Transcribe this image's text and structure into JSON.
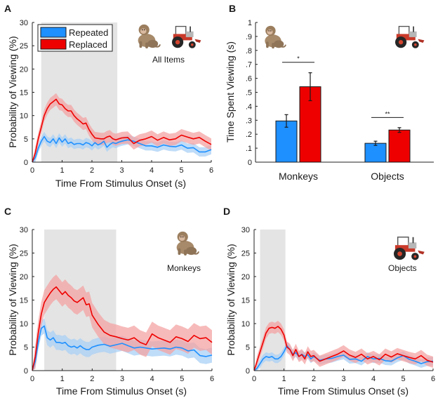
{
  "colors": {
    "repeated": "#1e90ff",
    "replaced": "#ee0000",
    "repeated_band": "#a9d0f5",
    "replaced_band": "#f4a3a3",
    "shade": "#e4e4e4"
  },
  "icons": {
    "monkey": "monkey-photo-icon",
    "object": "tractor-photo-icon"
  },
  "legend": {
    "repeated": "Repeated",
    "replaced": "Replaced"
  },
  "chart_data": [
    {
      "id": "A",
      "panel_label": "A",
      "type": "line",
      "annotation": "All Items",
      "xlabel": "Time From Stimulus Onset (s)",
      "ylabel": "Probability of Viewing (%)",
      "xlim": [
        0,
        6
      ],
      "ylim": [
        0,
        30
      ],
      "xticks": [
        "0",
        "1",
        "2",
        "3",
        "4",
        "5",
        "6"
      ],
      "yticks": [
        "0",
        "5",
        "10",
        "15",
        "20",
        "25",
        "30"
      ],
      "shaded_interval": [
        0.3,
        2.85
      ],
      "series": [
        {
          "name": "Repeated",
          "err": 1.0,
          "x": [
            0,
            0.1,
            0.2,
            0.3,
            0.4,
            0.5,
            0.6,
            0.7,
            0.8,
            0.9,
            1.0,
            1.1,
            1.2,
            1.3,
            1.4,
            1.5,
            1.6,
            1.7,
            1.8,
            1.9,
            2.0,
            2.1,
            2.2,
            2.3,
            2.4,
            2.5,
            2.6,
            2.7,
            2.8,
            2.9,
            3.0,
            3.2,
            3.4,
            3.6,
            3.8,
            4.0,
            4.2,
            4.4,
            4.6,
            4.8,
            5.0,
            5.2,
            5.4,
            5.6,
            5.8,
            6.0
          ],
          "y": [
            0,
            1,
            3,
            4.5,
            5.5,
            4.5,
            4.2,
            5.0,
            4.0,
            5.2,
            4.3,
            5.0,
            4.0,
            4.3,
            3.8,
            4.0,
            4.0,
            3.7,
            4.2,
            4.0,
            3.5,
            4.2,
            3.7,
            4.0,
            4.5,
            3.2,
            3.8,
            4.2,
            4.0,
            4.3,
            4.5,
            4.8,
            4.5,
            4.0,
            3.5,
            3.5,
            3.2,
            3.7,
            3.4,
            3.3,
            3.7,
            3.0,
            3.1,
            2.2,
            2.2,
            2.7
          ]
        },
        {
          "name": "Replaced",
          "err": 1.3,
          "x": [
            0,
            0.1,
            0.2,
            0.3,
            0.4,
            0.5,
            0.6,
            0.7,
            0.8,
            0.9,
            1.0,
            1.1,
            1.2,
            1.3,
            1.4,
            1.5,
            1.6,
            1.7,
            1.8,
            1.9,
            2.0,
            2.1,
            2.2,
            2.3,
            2.4,
            2.5,
            2.6,
            2.7,
            2.8,
            2.9,
            3.0,
            3.2,
            3.4,
            3.6,
            3.8,
            4.0,
            4.2,
            4.4,
            4.6,
            4.8,
            5.0,
            5.2,
            5.4,
            5.6,
            5.8,
            6.0
          ],
          "y": [
            0,
            2,
            5,
            7.5,
            10,
            11.5,
            12.5,
            13,
            13.5,
            12.5,
            12.3,
            11.5,
            11.0,
            11.0,
            10.0,
            9.3,
            8.8,
            8.2,
            8.4,
            7.0,
            6.0,
            5.2,
            5.1,
            5.0,
            5.0,
            5.4,
            5.6,
            5.0,
            4.8,
            5.0,
            5.2,
            5.3,
            4.0,
            4.7,
            5.0,
            5.5,
            4.7,
            5.3,
            4.8,
            5.0,
            5.8,
            5.4,
            5.0,
            5.3,
            4.5,
            3.8
          ]
        }
      ]
    },
    {
      "id": "B",
      "panel_label": "B",
      "type": "bar",
      "ylabel": "Time Spent Viewing (s)",
      "ylim": [
        0,
        1
      ],
      "yticks": [
        "0",
        ".1",
        ".2",
        ".3",
        ".4",
        ".5",
        ".6",
        ".7",
        ".8",
        ".9",
        "1"
      ],
      "categories": [
        "Monkeys",
        "Objects"
      ],
      "series": [
        {
          "name": "Repeated",
          "values": [
            0.295,
            0.135
          ],
          "errors": [
            0.045,
            0.015
          ]
        },
        {
          "name": "Replaced",
          "values": [
            0.54,
            0.23
          ],
          "errors": [
            0.1,
            0.017
          ]
        }
      ],
      "significance": [
        "*",
        "**"
      ]
    },
    {
      "id": "C",
      "panel_label": "C",
      "type": "line",
      "annotation": "Monkeys",
      "xlabel": "Time From Stimulus Onset (s)",
      "ylabel": "Probability of Viewing (%)",
      "xlim": [
        0,
        6
      ],
      "ylim": [
        0,
        30
      ],
      "xticks": [
        "0",
        "1",
        "2",
        "3",
        "4",
        "5",
        "6"
      ],
      "yticks": [
        "0",
        "5",
        "10",
        "15",
        "20",
        "25",
        "30"
      ],
      "shaded_interval": [
        0.4,
        2.8
      ],
      "series": [
        {
          "name": "Repeated",
          "err": 1.6,
          "x": [
            0,
            0.1,
            0.2,
            0.3,
            0.4,
            0.5,
            0.6,
            0.7,
            0.8,
            0.9,
            1.0,
            1.1,
            1.2,
            1.3,
            1.4,
            1.5,
            1.6,
            1.7,
            1.8,
            1.9,
            2.0,
            2.2,
            2.4,
            2.6,
            2.8,
            3.0,
            3.2,
            3.4,
            3.6,
            3.8,
            4.0,
            4.2,
            4.4,
            4.6,
            4.8,
            5.0,
            5.2,
            5.4,
            5.6,
            5.8,
            6.0
          ],
          "y": [
            0,
            2,
            6,
            9,
            9.5,
            7.0,
            6.5,
            7.0,
            6.0,
            6.0,
            5.8,
            6.0,
            5.3,
            5.0,
            5.2,
            4.8,
            5.3,
            4.8,
            4.5,
            4.5,
            5.0,
            5.4,
            5.6,
            5.2,
            5.5,
            5.8,
            5.3,
            4.8,
            5.0,
            4.8,
            4.6,
            4.7,
            4.8,
            4.6,
            5.0,
            4.8,
            4.2,
            4.4,
            3.2,
            3.0,
            3.3
          ]
        },
        {
          "name": "Replaced",
          "err": 2.6,
          "x": [
            0,
            0.1,
            0.2,
            0.3,
            0.4,
            0.5,
            0.6,
            0.7,
            0.8,
            0.9,
            1.0,
            1.1,
            1.2,
            1.3,
            1.4,
            1.5,
            1.6,
            1.7,
            1.8,
            1.9,
            2.0,
            2.2,
            2.4,
            2.6,
            2.8,
            3.0,
            3.2,
            3.4,
            3.6,
            3.8,
            4.0,
            4.2,
            4.4,
            4.6,
            4.8,
            5.0,
            5.2,
            5.4,
            5.6,
            5.8,
            6.0
          ],
          "y": [
            0,
            3,
            8,
            12,
            14.5,
            15.5,
            16.5,
            17.3,
            17.8,
            17.0,
            16.2,
            16.8,
            16.0,
            15.5,
            14.8,
            14.5,
            15.0,
            15.5,
            14.0,
            14.2,
            11.8,
            9.8,
            8.2,
            7.5,
            7.2,
            6.8,
            6.5,
            7.0,
            6.0,
            5.5,
            7.8,
            7.0,
            6.5,
            6.0,
            7.2,
            6.8,
            6.2,
            7.5,
            6.8,
            7.0,
            6.0
          ]
        }
      ]
    },
    {
      "id": "D",
      "panel_label": "D",
      "type": "line",
      "annotation": "Objects",
      "xlabel": "Time From Stimulus Onset (s)",
      "ylabel": "Probability of Viewing (%)",
      "xlim": [
        0,
        6
      ],
      "ylim": [
        0,
        30
      ],
      "xticks": [
        "0",
        "1",
        "2",
        "3",
        "4",
        "5",
        "6"
      ],
      "yticks": [
        "0",
        "5",
        "10",
        "15",
        "20",
        "25",
        "30"
      ],
      "shaded_interval": [
        0.2,
        1.05
      ],
      "series": [
        {
          "name": "Repeated",
          "err": 0.9,
          "x": [
            0,
            0.1,
            0.2,
            0.3,
            0.4,
            0.5,
            0.6,
            0.7,
            0.8,
            0.9,
            1.0,
            1.1,
            1.2,
            1.3,
            1.4,
            1.5,
            1.6,
            1.7,
            1.8,
            1.9,
            2.0,
            2.2,
            2.4,
            2.6,
            2.8,
            3.0,
            3.2,
            3.4,
            3.6,
            3.8,
            4.0,
            4.2,
            4.4,
            4.6,
            4.8,
            5.0,
            5.2,
            5.4,
            5.6,
            5.8,
            6.0
          ],
          "y": [
            0,
            0.5,
            1.5,
            2.5,
            3.0,
            2.8,
            3.0,
            2.5,
            2.5,
            3.0,
            4.0,
            5.3,
            4.5,
            3.5,
            3.8,
            3.0,
            3.5,
            3.0,
            3.4,
            2.5,
            3.0,
            2.2,
            2.5,
            2.6,
            3.0,
            3.3,
            2.4,
            2.5,
            2.0,
            3.0,
            2.5,
            2.6,
            2.1,
            2.0,
            2.7,
            3.2,
            2.4,
            2.0,
            1.5,
            1.9,
            2.0
          ]
        },
        {
          "name": "Replaced",
          "err": 1.2,
          "x": [
            0,
            0.1,
            0.2,
            0.3,
            0.4,
            0.5,
            0.6,
            0.7,
            0.8,
            0.9,
            1.0,
            1.1,
            1.2,
            1.3,
            1.4,
            1.5,
            1.6,
            1.7,
            1.8,
            1.9,
            2.0,
            2.2,
            2.4,
            2.6,
            2.8,
            3.0,
            3.2,
            3.4,
            3.6,
            3.8,
            4.0,
            4.2,
            4.4,
            4.6,
            4.8,
            5.0,
            5.2,
            5.4,
            5.6,
            5.8,
            6.0
          ],
          "y": [
            0,
            2,
            4,
            6,
            8,
            9,
            9.2,
            9.0,
            9.4,
            8.8,
            7.6,
            5.0,
            4.5,
            3.2,
            4.5,
            3.0,
            3.4,
            2.5,
            4.0,
            3.0,
            3.2,
            2.0,
            2.5,
            3.0,
            3.5,
            4.2,
            3.3,
            2.8,
            3.5,
            2.5,
            3.0,
            2.3,
            3.5,
            2.9,
            3.6,
            3.2,
            2.8,
            2.5,
            3.2,
            2.2,
            1.8
          ]
        }
      ]
    }
  ]
}
